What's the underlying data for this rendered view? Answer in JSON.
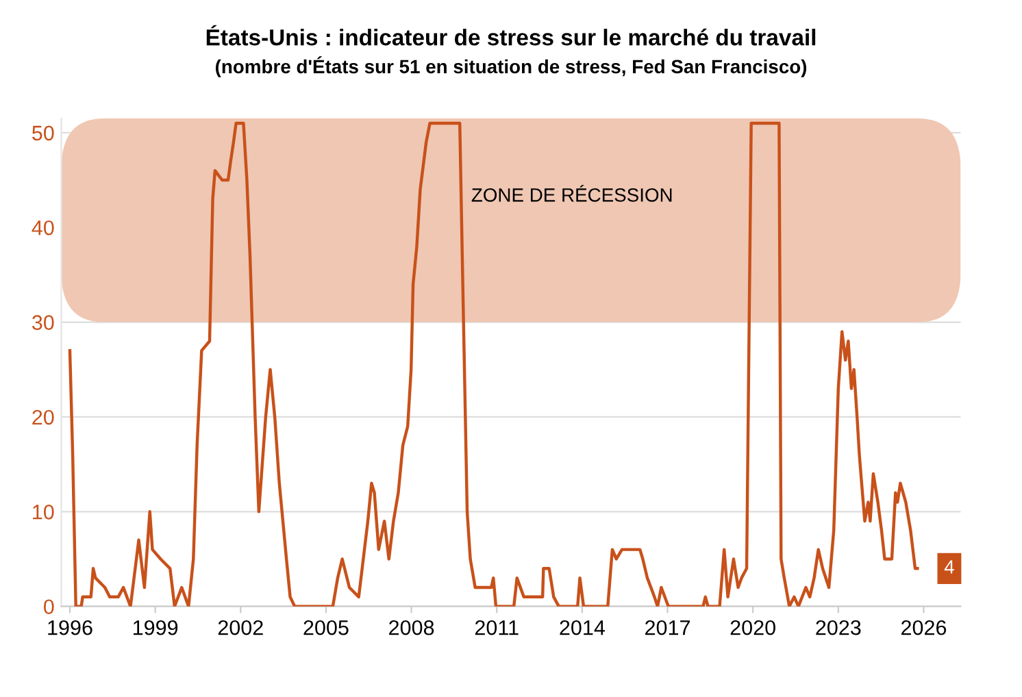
{
  "chart_data": {
    "type": "line",
    "title": "États-Unis : indicateur de stress sur le marché du travail",
    "subtitle": "(nombre d'États sur 51 en situation de stress, Fed San Francisco)",
    "series": [
      {
        "color": "#c8511a",
        "x": [
          1996.0,
          1996.1,
          1996.21,
          1996.4,
          1996.45,
          1996.74,
          1996.82,
          1996.9,
          1997.23,
          1997.4,
          1997.7,
          1997.88,
          1998.13,
          1998.42,
          1998.62,
          1998.81,
          1998.9,
          1999.19,
          1999.52,
          1999.68,
          1999.93,
          2000.17,
          2000.34,
          2000.47,
          2000.63,
          2000.91,
          2001.02,
          2001.1,
          2001.35,
          2001.56,
          2001.65,
          2001.75,
          2001.84,
          2002.1,
          2002.22,
          2002.33,
          2002.51,
          2002.64,
          2002.76,
          2002.88,
          2003.04,
          2003.2,
          2003.36,
          2003.61,
          2003.74,
          2003.9,
          2005.24,
          2005.41,
          2005.57,
          2005.82,
          2006.15,
          2006.31,
          2006.47,
          2006.6,
          2006.7,
          2006.85,
          2007.05,
          2007.21,
          2007.37,
          2007.54,
          2007.7,
          2007.87,
          2007.99,
          2008.06,
          2008.19,
          2008.31,
          2008.52,
          2008.65,
          2009.7,
          2009.8,
          2009.96,
          2010.07,
          2010.24,
          2010.81,
          2010.88,
          2010.97,
          2011.6,
          2011.71,
          2011.95,
          2012.61,
          2012.64,
          2012.84,
          2013.0,
          2013.18,
          2013.84,
          2013.92,
          2014.05,
          2014.9,
          2015.06,
          2015.2,
          2015.4,
          2016.03,
          2016.13,
          2016.29,
          2016.54,
          2016.65,
          2016.78,
          2017.03,
          2018.25,
          2018.33,
          2018.42,
          2018.83,
          2018.99,
          2019.12,
          2019.32,
          2019.48,
          2019.6,
          2019.78,
          2019.94,
          2020.92,
          2020.99,
          2021.1,
          2021.28,
          2021.45,
          2021.6,
          2021.86,
          2022.0,
          2022.15,
          2022.3,
          2022.45,
          2022.67,
          2022.84,
          2023.0,
          2023.13,
          2023.25,
          2023.35,
          2023.46,
          2023.55,
          2023.66,
          2023.74,
          2023.82,
          2023.93,
          2024.05,
          2024.12,
          2024.23,
          2024.39,
          2024.52,
          2024.63,
          2024.88,
          2025.01,
          2025.08,
          2025.18,
          2025.37,
          2025.54,
          2025.7,
          2025.78
        ],
        "values": [
          27,
          16,
          0,
          0,
          1,
          1,
          4,
          3,
          2,
          1,
          1,
          2,
          0,
          7,
          2,
          10,
          6,
          5,
          4,
          0,
          2,
          0,
          5,
          17,
          27,
          28,
          43,
          46,
          45,
          45,
          47,
          49,
          51,
          51,
          45,
          37,
          20,
          10,
          15,
          20,
          25,
          20,
          13,
          5,
          1,
          0,
          0,
          3,
          5,
          2,
          1,
          5,
          9,
          13,
          12,
          6,
          9,
          5,
          9,
          12,
          17,
          19,
          25,
          34,
          38,
          44,
          49,
          51,
          51,
          35,
          10,
          5,
          2,
          2,
          3,
          0,
          0,
          3,
          1,
          1,
          4,
          4,
          1,
          0,
          0,
          3,
          0,
          0,
          6,
          5,
          6,
          6,
          5,
          3,
          1,
          0,
          2,
          0,
          0,
          1,
          0,
          0,
          6,
          1,
          5,
          2,
          3,
          4,
          51,
          51,
          5,
          3,
          0,
          1,
          0,
          2,
          1,
          3,
          6,
          4,
          2,
          8,
          23,
          29,
          26,
          28,
          23,
          25,
          20,
          16,
          13,
          9,
          11,
          9,
          14,
          11,
          8,
          5,
          5,
          12,
          11,
          13,
          11,
          8,
          4,
          4
        ],
        "value_labels": [
          null,
          null,
          null,
          null,
          null,
          null,
          null,
          null,
          null,
          null,
          null,
          null,
          null,
          null,
          null,
          null,
          null,
          null,
          null,
          null,
          null,
          null,
          null,
          null,
          null,
          null,
          null,
          null,
          null,
          null,
          null,
          null,
          null,
          null,
          null,
          null,
          null,
          null,
          null,
          null,
          null,
          null,
          null,
          null,
          null,
          null,
          null,
          null,
          null,
          null,
          null,
          null,
          null,
          null,
          null,
          null,
          null,
          null,
          null,
          null,
          null,
          null,
          null,
          null,
          null,
          null,
          null,
          null,
          null,
          null,
          null,
          null,
          null,
          null,
          null,
          null,
          null,
          null,
          null,
          null,
          null,
          null,
          null,
          null,
          null,
          null,
          null,
          null,
          null,
          null,
          null,
          null,
          null,
          null,
          null,
          null,
          null,
          null,
          null,
          null,
          null,
          null,
          null,
          null,
          null,
          null,
          null,
          null,
          null,
          null,
          null,
          null,
          null,
          null,
          null,
          null,
          null,
          null,
          null,
          null,
          null,
          null,
          null,
          null,
          null,
          null,
          null,
          null,
          null,
          null,
          null,
          null,
          null,
          null,
          null,
          null,
          null,
          null,
          null,
          null,
          null,
          null,
          null,
          null,
          null,
          "4"
        ]
      }
    ],
    "xlim": [
      1995.7,
      2027.3
    ],
    "ylim": [
      0,
      51.5
    ],
    "xticks": [
      1996,
      1999,
      2002,
      2005,
      2008,
      2011,
      2014,
      2017,
      2020,
      2023,
      2026
    ],
    "yticks": [
      0,
      10,
      20,
      30,
      40,
      50
    ],
    "bands": [
      {
        "axis": "y",
        "from": 30,
        "to": 51.5,
        "label": "ZONE DE RÉCESSION",
        "color": "#efc7b3"
      }
    ],
    "grid": "y",
    "legend": false
  }
}
